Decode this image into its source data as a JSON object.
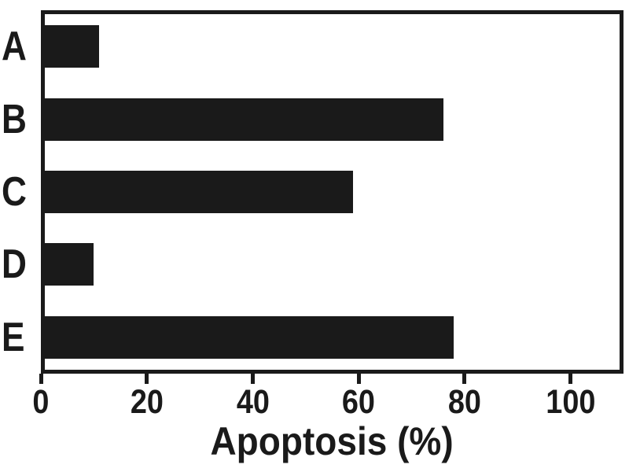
{
  "chart_data": {
    "type": "bar",
    "orientation": "horizontal",
    "categories": [
      "A",
      "B",
      "C",
      "D",
      "E"
    ],
    "values": [
      11,
      76,
      59,
      10,
      78
    ],
    "title": "",
    "xlabel": "Apoptosis (%)",
    "ylabel": "",
    "xticks": [
      0,
      20,
      40,
      60,
      80,
      100
    ],
    "xlim": [
      0,
      110
    ],
    "grid": false,
    "legend": false,
    "bar_color": "#1a1a1a",
    "axis_color": "#1a1a1a",
    "background_color": "#ffffff"
  }
}
